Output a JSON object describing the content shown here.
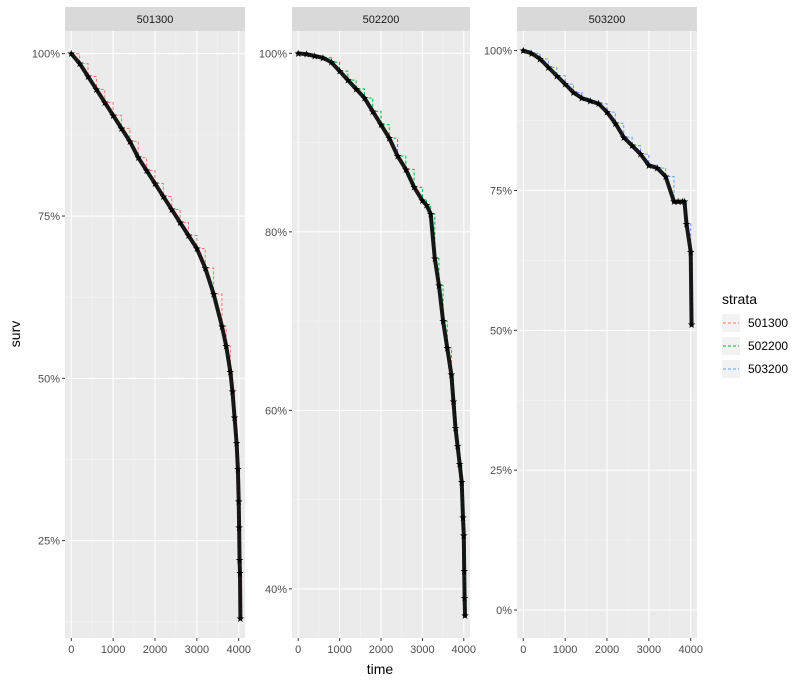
{
  "chart_data": {
    "type": "line",
    "xlabel": "time",
    "ylabel": "surv",
    "legend": {
      "title": "strata",
      "placement": "right",
      "entries": [
        {
          "label": "501300",
          "color": "#F8766D"
        },
        {
          "label": "502200",
          "color": "#00BA38"
        },
        {
          "label": "503200",
          "color": "#619CFF"
        }
      ]
    },
    "panels": [
      {
        "strip": "501300",
        "series": {
          "name": "501300",
          "color": "#F8766D"
        },
        "xlim": [
          -150,
          4150
        ],
        "xticks": [
          0,
          1000,
          2000,
          3000,
          4000
        ],
        "xtick_labels": [
          "0",
          "1000",
          "2000",
          "3000",
          "4000"
        ],
        "ylim": [
          0.1,
          1.035
        ],
        "yticks": [
          0.25,
          0.5,
          0.75,
          1.0
        ],
        "ytick_labels": [
          "25%",
          "50%",
          "75%",
          "100%"
        ],
        "x": [
          0,
          200,
          400,
          600,
          800,
          1000,
          1200,
          1400,
          1600,
          1800,
          2000,
          2200,
          2400,
          2600,
          2800,
          3000,
          3200,
          3400,
          3600,
          3700,
          3800,
          3850,
          3900,
          3950,
          3980,
          4000,
          4010,
          4020,
          4030,
          4040
        ],
        "y": [
          1.0,
          0.985,
          0.965,
          0.945,
          0.925,
          0.905,
          0.885,
          0.865,
          0.84,
          0.82,
          0.8,
          0.78,
          0.76,
          0.74,
          0.72,
          0.7,
          0.67,
          0.63,
          0.58,
          0.55,
          0.51,
          0.48,
          0.44,
          0.4,
          0.36,
          0.31,
          0.27,
          0.22,
          0.2,
          0.13
        ]
      },
      {
        "strip": "502200",
        "series": {
          "name": "502200",
          "color": "#00BA38"
        },
        "xlim": [
          -150,
          4150
        ],
        "xticks": [
          0,
          1000,
          2000,
          3000,
          4000
        ],
        "xtick_labels": [
          "0",
          "1000",
          "2000",
          "3000",
          "4000"
        ],
        "ylim": [
          0.345,
          1.025
        ],
        "yticks": [
          0.4,
          0.6,
          0.8,
          1.0
        ],
        "ytick_labels": [
          "40%",
          "60%",
          "80%",
          "100%"
        ],
        "x": [
          0,
          200,
          400,
          600,
          800,
          1000,
          1200,
          1400,
          1600,
          1800,
          2000,
          2200,
          2400,
          2600,
          2800,
          3000,
          3100,
          3200,
          3300,
          3400,
          3500,
          3600,
          3700,
          3750,
          3800,
          3850,
          3900,
          3950,
          3980,
          4000,
          4010,
          4020,
          4030
        ],
        "y": [
          1.0,
          0.999,
          0.997,
          0.995,
          0.99,
          0.98,
          0.97,
          0.96,
          0.95,
          0.935,
          0.92,
          0.905,
          0.885,
          0.87,
          0.85,
          0.835,
          0.83,
          0.82,
          0.77,
          0.74,
          0.7,
          0.67,
          0.64,
          0.61,
          0.58,
          0.56,
          0.54,
          0.52,
          0.48,
          0.46,
          0.42,
          0.39,
          0.37
        ]
      },
      {
        "strip": "503200",
        "series": {
          "name": "503200",
          "color": "#619CFF"
        },
        "xlim": [
          -150,
          4150
        ],
        "xticks": [
          0,
          1000,
          2000,
          3000,
          4000
        ],
        "xtick_labels": [
          "0",
          "1000",
          "2000",
          "3000",
          "4000"
        ],
        "ylim": [
          -0.05,
          1.035
        ],
        "yticks": [
          0.0,
          0.25,
          0.5,
          0.75,
          1.0
        ],
        "ytick_labels": [
          "0%",
          "25%",
          "50%",
          "75%",
          "100%"
        ],
        "x": [
          0,
          200,
          400,
          600,
          800,
          1000,
          1200,
          1400,
          1600,
          1800,
          2000,
          2200,
          2400,
          2600,
          2800,
          3000,
          3200,
          3400,
          3600,
          3700,
          3800,
          3850,
          3900,
          4000,
          4020
        ],
        "y": [
          1.0,
          0.995,
          0.985,
          0.97,
          0.955,
          0.94,
          0.925,
          0.915,
          0.91,
          0.905,
          0.89,
          0.87,
          0.845,
          0.83,
          0.815,
          0.795,
          0.79,
          0.775,
          0.73,
          0.73,
          0.73,
          0.73,
          0.69,
          0.64,
          0.51
        ]
      }
    ]
  }
}
